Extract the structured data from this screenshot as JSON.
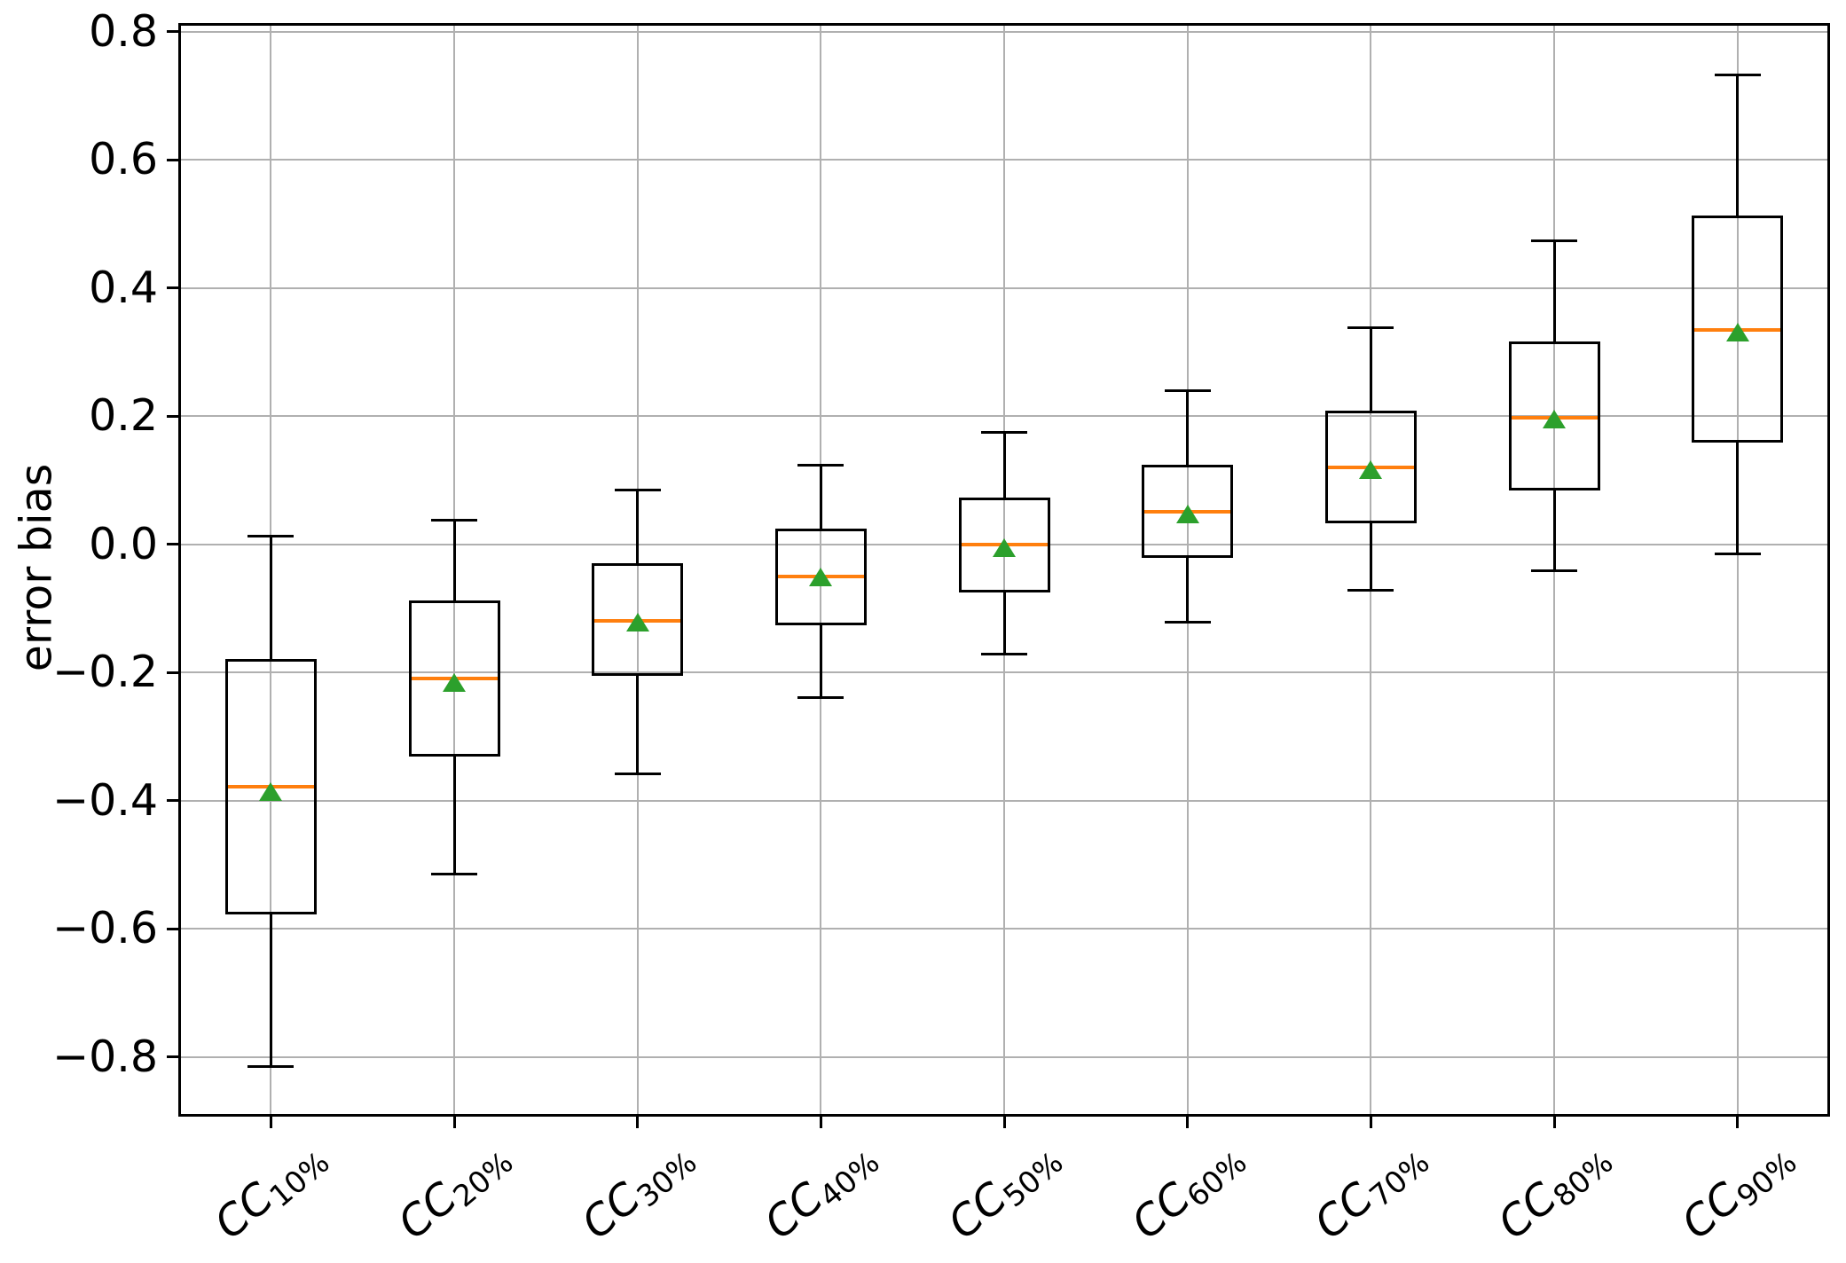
{
  "chart_data": {
    "type": "boxplot",
    "title": "",
    "xlabel": "",
    "ylabel": "error bias",
    "grid": true,
    "legend": null,
    "ylim": [
      -0.892,
      0.812
    ],
    "yticks": [
      {
        "value": 0.8,
        "label": "0.8"
      },
      {
        "value": 0.6,
        "label": "0.6"
      },
      {
        "value": 0.4,
        "label": "0.4"
      },
      {
        "value": 0.2,
        "label": "0.2"
      },
      {
        "value": 0.0,
        "label": "0.0"
      },
      {
        "value": -0.2,
        "label": "−0.2"
      },
      {
        "value": -0.4,
        "label": "−0.4"
      },
      {
        "value": -0.6,
        "label": "−0.6"
      },
      {
        "value": -0.8,
        "label": "−0.8"
      }
    ],
    "categories": [
      "CC10%",
      "CC20%",
      "CC30%",
      "CC40%",
      "CC50%",
      "CC60%",
      "CC70%",
      "CC80%",
      "CC90%"
    ],
    "series": [
      {
        "label_base": "CC",
        "label_sub": "10%",
        "whislo": -0.815,
        "q1": -0.578,
        "med": -0.378,
        "mean": -0.386,
        "q3": -0.179,
        "whishi": 0.012
      },
      {
        "label_base": "CC",
        "label_sub": "20%",
        "whislo": -0.515,
        "q1": -0.332,
        "med": -0.209,
        "mean": -0.216,
        "q3": -0.088,
        "whishi": 0.038
      },
      {
        "label_base": "CC",
        "label_sub": "30%",
        "whislo": -0.359,
        "q1": -0.205,
        "med": -0.119,
        "mean": -0.122,
        "q3": -0.029,
        "whishi": 0.085
      },
      {
        "label_base": "CC",
        "label_sub": "40%",
        "whislo": -0.24,
        "q1": -0.126,
        "med": -0.05,
        "mean": -0.051,
        "q3": 0.024,
        "whishi": 0.124
      },
      {
        "label_base": "CC",
        "label_sub": "50%",
        "whislo": -0.172,
        "q1": -0.075,
        "med": -0.001,
        "mean": -0.006,
        "q3": 0.073,
        "whishi": 0.174
      },
      {
        "label_base": "CC",
        "label_sub": "60%",
        "whislo": -0.121,
        "q1": -0.022,
        "med": 0.051,
        "mean": 0.047,
        "q3": 0.124,
        "whishi": 0.239
      },
      {
        "label_base": "CC",
        "label_sub": "70%",
        "whislo": -0.072,
        "q1": 0.033,
        "med": 0.12,
        "mean": 0.116,
        "q3": 0.208,
        "whishi": 0.338
      },
      {
        "label_base": "CC",
        "label_sub": "80%",
        "whislo": -0.042,
        "q1": 0.084,
        "med": 0.198,
        "mean": 0.196,
        "q3": 0.317,
        "whishi": 0.473
      },
      {
        "label_base": "CC",
        "label_sub": "90%",
        "whislo": -0.015,
        "q1": 0.159,
        "med": 0.335,
        "mean": 0.331,
        "q3": 0.513,
        "whishi": 0.732
      }
    ],
    "colors": {
      "box": "#000000",
      "whisker": "#000000",
      "median": "#ff7f0e",
      "mean_marker": "#2ca02c",
      "grid": "#b0b0b0",
      "background": "#ffffff",
      "text": "#000000"
    },
    "marker": {
      "mean_shape": "triangle-up"
    }
  }
}
